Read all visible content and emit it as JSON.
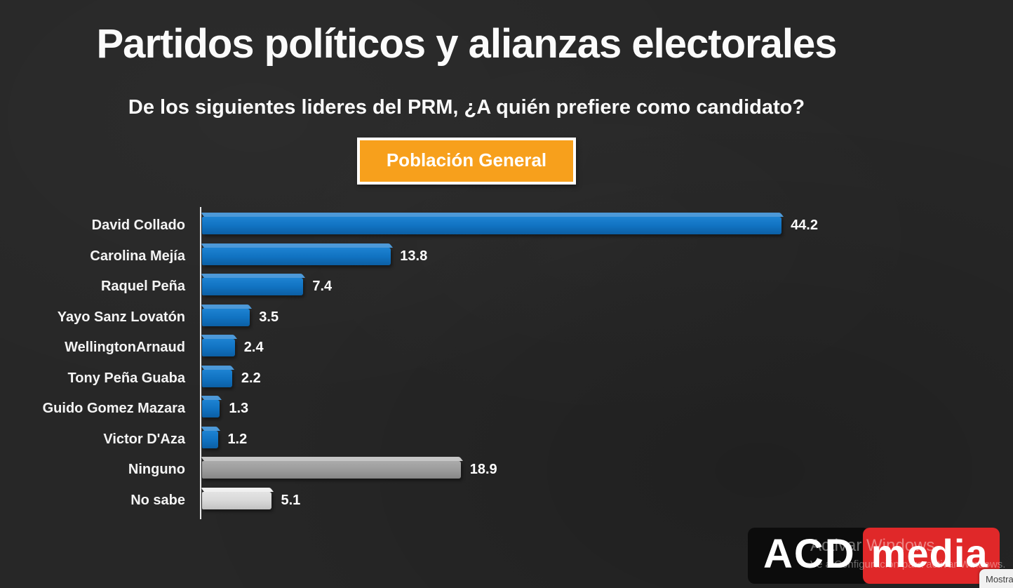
{
  "page": {
    "background": "#272727"
  },
  "header": {
    "title": "Partidos políticos y alianzas electorales",
    "subtitle": "De los siguientes lideres del PRM, ¿A quién prefiere como candidato?"
  },
  "filter_button": {
    "label": "Población General",
    "bg_color": "#f7a01c"
  },
  "chart_data": {
    "type": "bar",
    "orientation": "horizontal",
    "title": "De los siguientes lideres del PRM, ¿A quién prefiere como candidato?",
    "categories": [
      "David Collado",
      "Carolina Mejía",
      "Raquel Peña",
      "Yayo Sanz Lovatón",
      "WellingtonArnaud",
      "Tony Peña Guaba",
      "Guido Gomez Mazara",
      "Victor D'Aza",
      "Ninguno",
      "No sabe"
    ],
    "values": [
      44.2,
      13.8,
      7.4,
      3.5,
      2.4,
      2.2,
      1.3,
      1.2,
      18.9,
      5.1
    ],
    "bar_variants": [
      "blue",
      "blue",
      "blue",
      "blue",
      "blue",
      "blue",
      "blue",
      "blue",
      "gray",
      "light"
    ],
    "colors": {
      "blue": "#1173c2",
      "gray": "#9c9c9c",
      "light": "#d8d8d8"
    },
    "xlim": [
      0,
      45
    ],
    "grid": false,
    "legend": false,
    "value_labels": "end-of-bar",
    "value_label_color": "#ffffff"
  },
  "watermark": {
    "line1": "Activar Windows",
    "line2": "Ve a Configuración para activar Windows."
  },
  "logo": {
    "part1": "ACD",
    "part2": "media",
    "part1_bg": "#0c0c0c",
    "part2_bg": "#e02829"
  },
  "corner_tooltip": {
    "label": "Mostra"
  }
}
